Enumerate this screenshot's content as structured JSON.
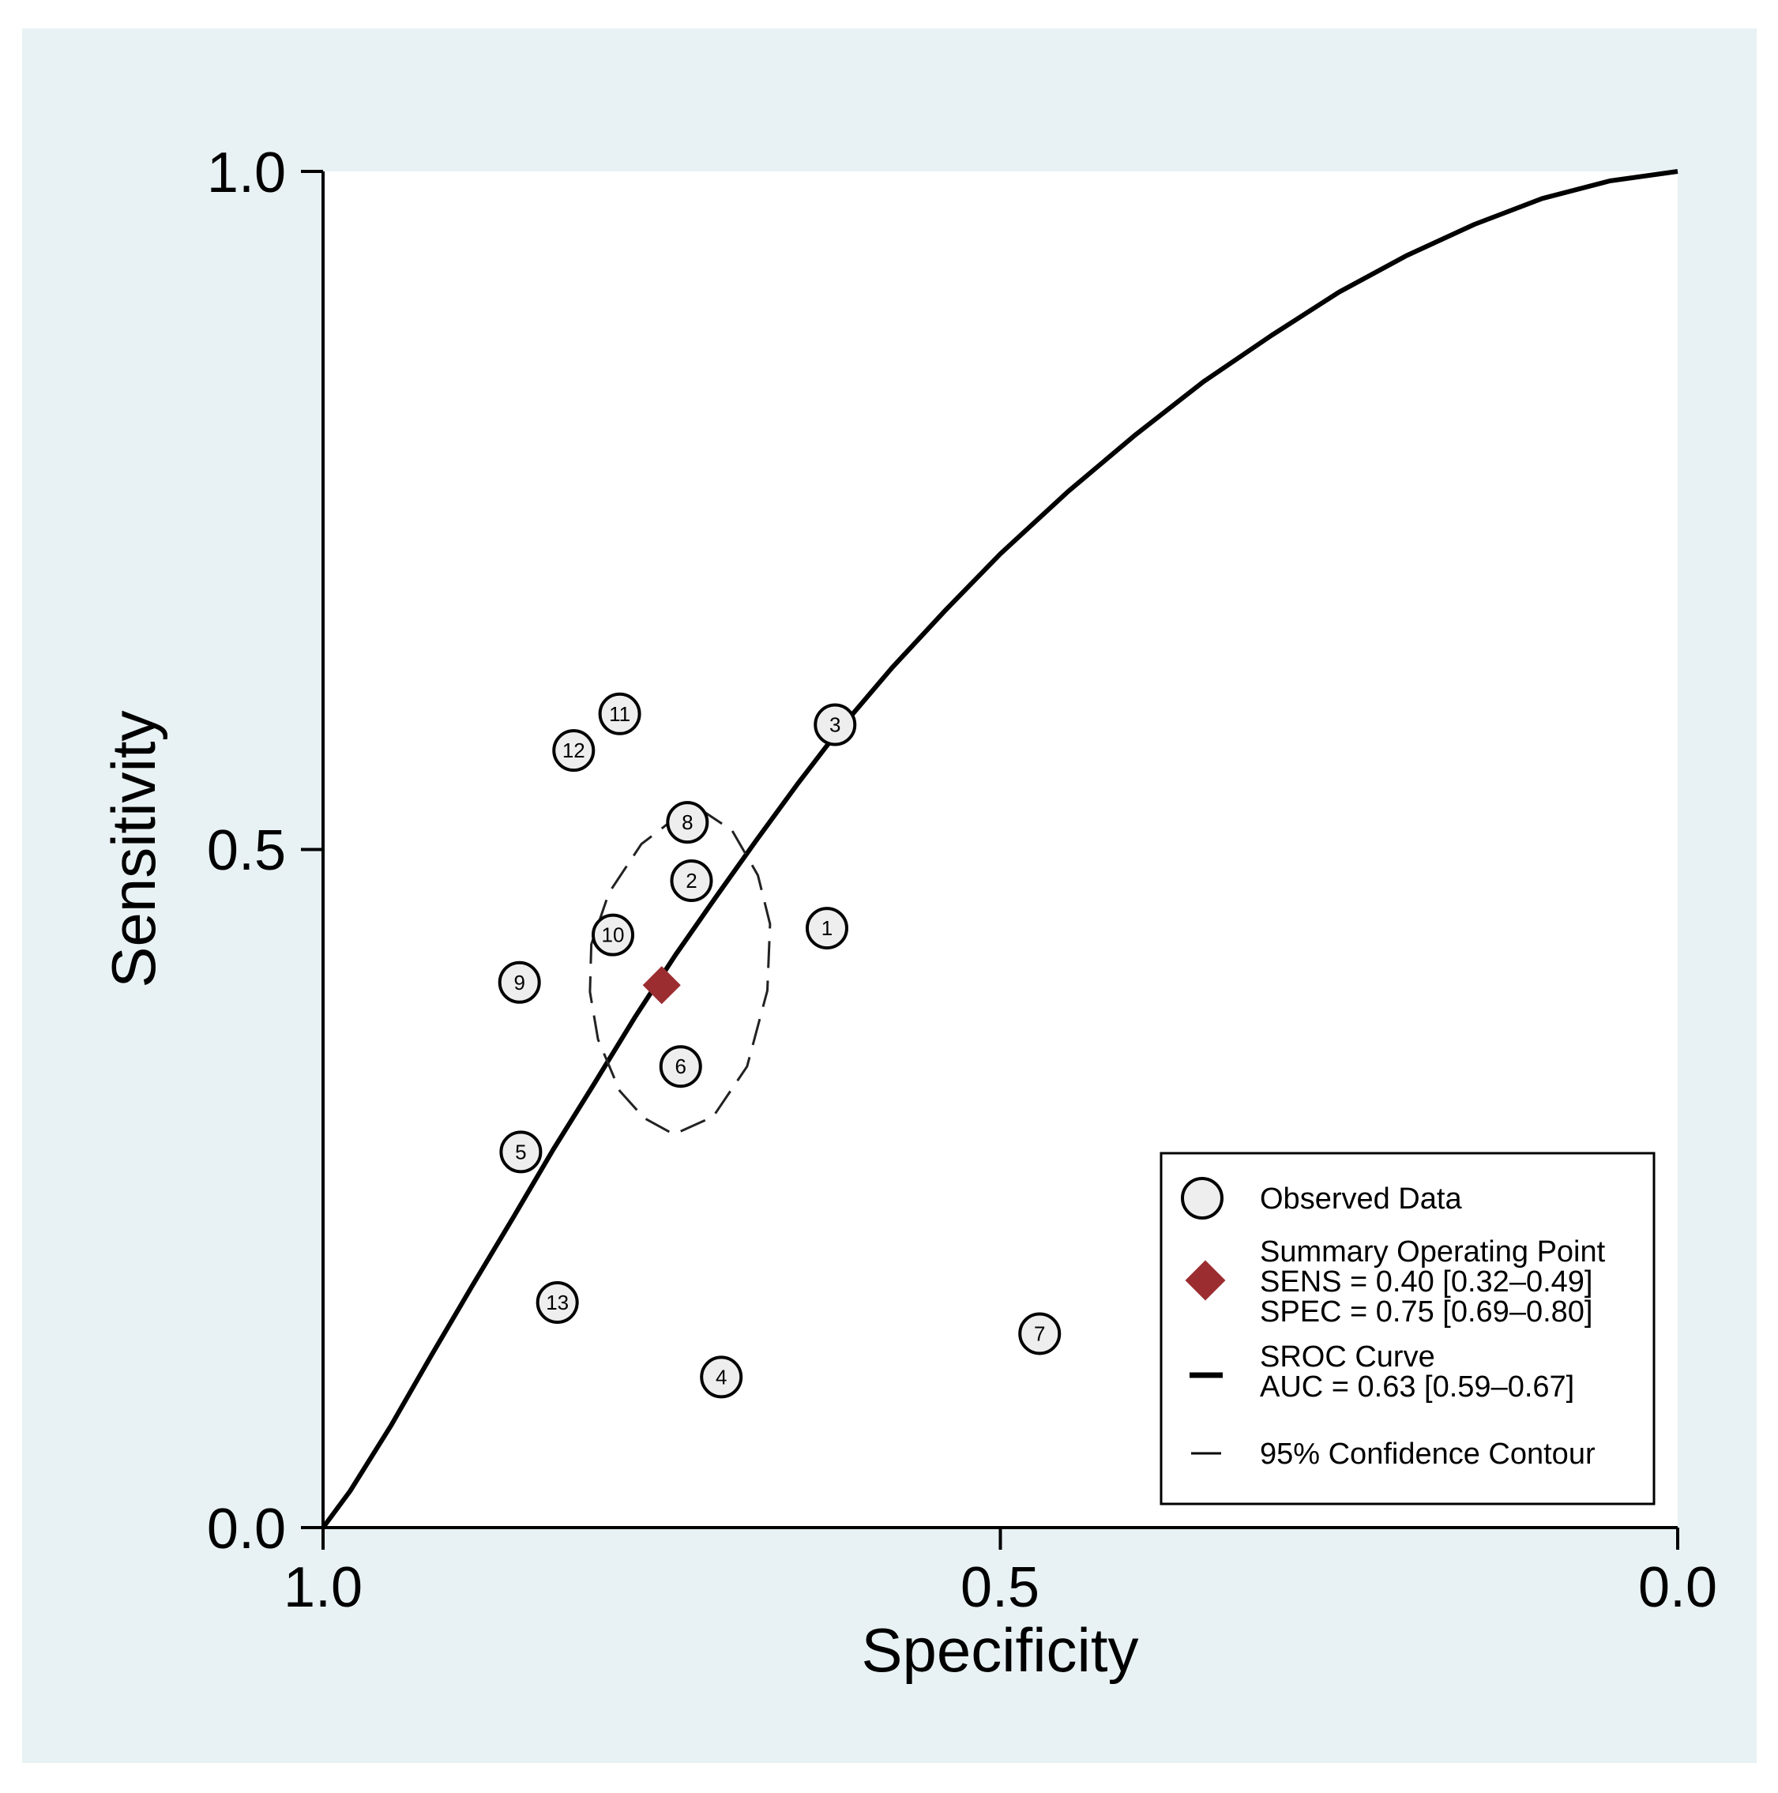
{
  "chart_data": {
    "type": "scatter",
    "title": "",
    "xlabel": "Specificity",
    "ylabel": "Sensitivity",
    "xlim": [
      1.0,
      0.0
    ],
    "ylim": [
      0.0,
      1.0
    ],
    "x_ticks": [
      "1.0",
      "0.5",
      "0.0"
    ],
    "y_ticks": [
      "0.0",
      "0.5",
      "1.0"
    ],
    "grid": false,
    "colors": {
      "background": "#e8f1f3",
      "plot": "#ffffff",
      "summary": "#9b2d30",
      "marker_fill": "#eeeeee"
    },
    "studies": [
      {
        "id": "1",
        "specificity": 0.628,
        "sensitivity": 0.442
      },
      {
        "id": "2",
        "specificity": 0.728,
        "sensitivity": 0.477
      },
      {
        "id": "3",
        "specificity": 0.622,
        "sensitivity": 0.592
      },
      {
        "id": "4",
        "specificity": 0.706,
        "sensitivity": 0.111
      },
      {
        "id": "5",
        "specificity": 0.854,
        "sensitivity": 0.277
      },
      {
        "id": "6",
        "specificity": 0.736,
        "sensitivity": 0.34
      },
      {
        "id": "7",
        "specificity": 0.471,
        "sensitivity": 0.143
      },
      {
        "id": "8",
        "specificity": 0.731,
        "sensitivity": 0.52
      },
      {
        "id": "9",
        "specificity": 0.855,
        "sensitivity": 0.402
      },
      {
        "id": "10",
        "specificity": 0.786,
        "sensitivity": 0.437
      },
      {
        "id": "11",
        "specificity": 0.781,
        "sensitivity": 0.6
      },
      {
        "id": "12",
        "specificity": 0.815,
        "sensitivity": 0.573
      },
      {
        "id": "13",
        "specificity": 0.827,
        "sensitivity": 0.166
      }
    ],
    "summary_point": {
      "specificity": 0.75,
      "sensitivity": 0.4
    },
    "sroc_curve": {
      "specificity": [
        1.0,
        0.98,
        0.95,
        0.92,
        0.89,
        0.86,
        0.83,
        0.8,
        0.77,
        0.74,
        0.71,
        0.68,
        0.65,
        0.62,
        0.58,
        0.54,
        0.5,
        0.45,
        0.4,
        0.35,
        0.3,
        0.25,
        0.2,
        0.15,
        0.1,
        0.05,
        0.0
      ],
      "sensitivity": [
        0.0,
        0.027,
        0.075,
        0.127,
        0.178,
        0.228,
        0.279,
        0.327,
        0.376,
        0.422,
        0.465,
        0.507,
        0.548,
        0.587,
        0.634,
        0.677,
        0.718,
        0.764,
        0.806,
        0.845,
        0.879,
        0.911,
        0.938,
        0.961,
        0.98,
        0.993,
        1.0
      ]
    },
    "confidence_contour": {
      "specificity": [
        0.722,
        0.698,
        0.679,
        0.67,
        0.672,
        0.687,
        0.712,
        0.741,
        0.763,
        0.781,
        0.797,
        0.803,
        0.802,
        0.789,
        0.765,
        0.735,
        0.722
      ],
      "sensitivity": [
        0.53,
        0.514,
        0.481,
        0.445,
        0.396,
        0.34,
        0.303,
        0.29,
        0.302,
        0.322,
        0.36,
        0.395,
        0.43,
        0.468,
        0.504,
        0.527,
        0.53
      ]
    },
    "legend": {
      "position": "bottom-right",
      "items": [
        {
          "lines": [
            "Observed Data"
          ]
        },
        {
          "lines": [
            "Summary Operating  Point",
            "SENS = 0.40 [0.32–0.49]",
            "SPEC = 0.75 [0.69–0.80]"
          ]
        },
        {
          "lines": [
            "SROC Curve",
            "AUC = 0.63 [0.59–0.67]"
          ]
        },
        {
          "lines": [
            "95% Confidence Contour"
          ]
        }
      ]
    }
  }
}
